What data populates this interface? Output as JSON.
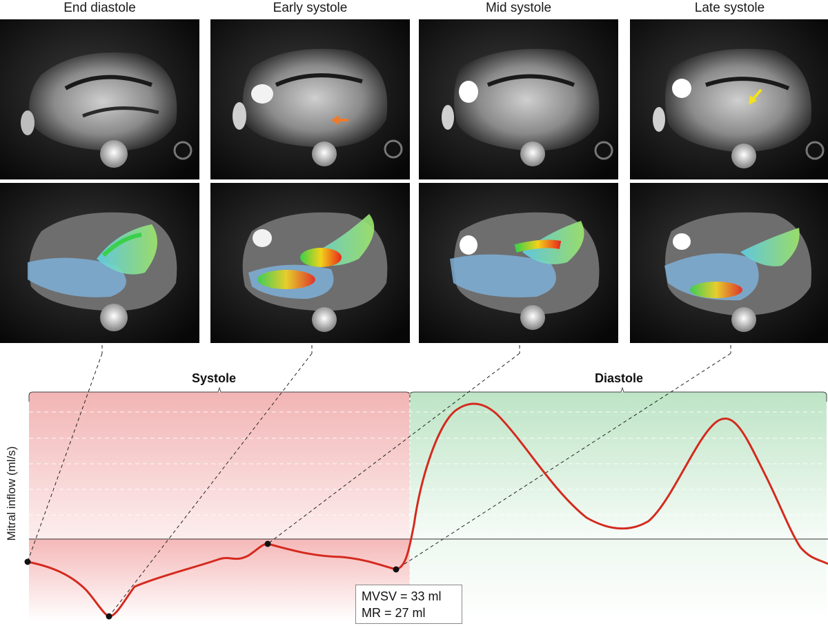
{
  "columns": [
    {
      "title": "End diastole"
    },
    {
      "title": "Early systole"
    },
    {
      "title": "Mid systole"
    },
    {
      "title": "Late systole"
    }
  ],
  "phases": {
    "systole": "Systole",
    "diastole": "Diastole"
  },
  "y_axis_label": "Mitral inflow (ml/s)",
  "stats": {
    "mvsv": "MVSV = 33 ml",
    "mr": "MR = 27 ml"
  },
  "colors": {
    "curve": "#d42a1e",
    "systole_fill": "#f2b8b8",
    "diastole_fill": "#bfe6c8",
    "orange_arrow": "#f07a2a",
    "yellow_arrow": "#f2e21a"
  },
  "icons": {
    "row1_col2": "orange-arrow-icon",
    "row1_col4": "yellow-arrow-icon"
  }
}
